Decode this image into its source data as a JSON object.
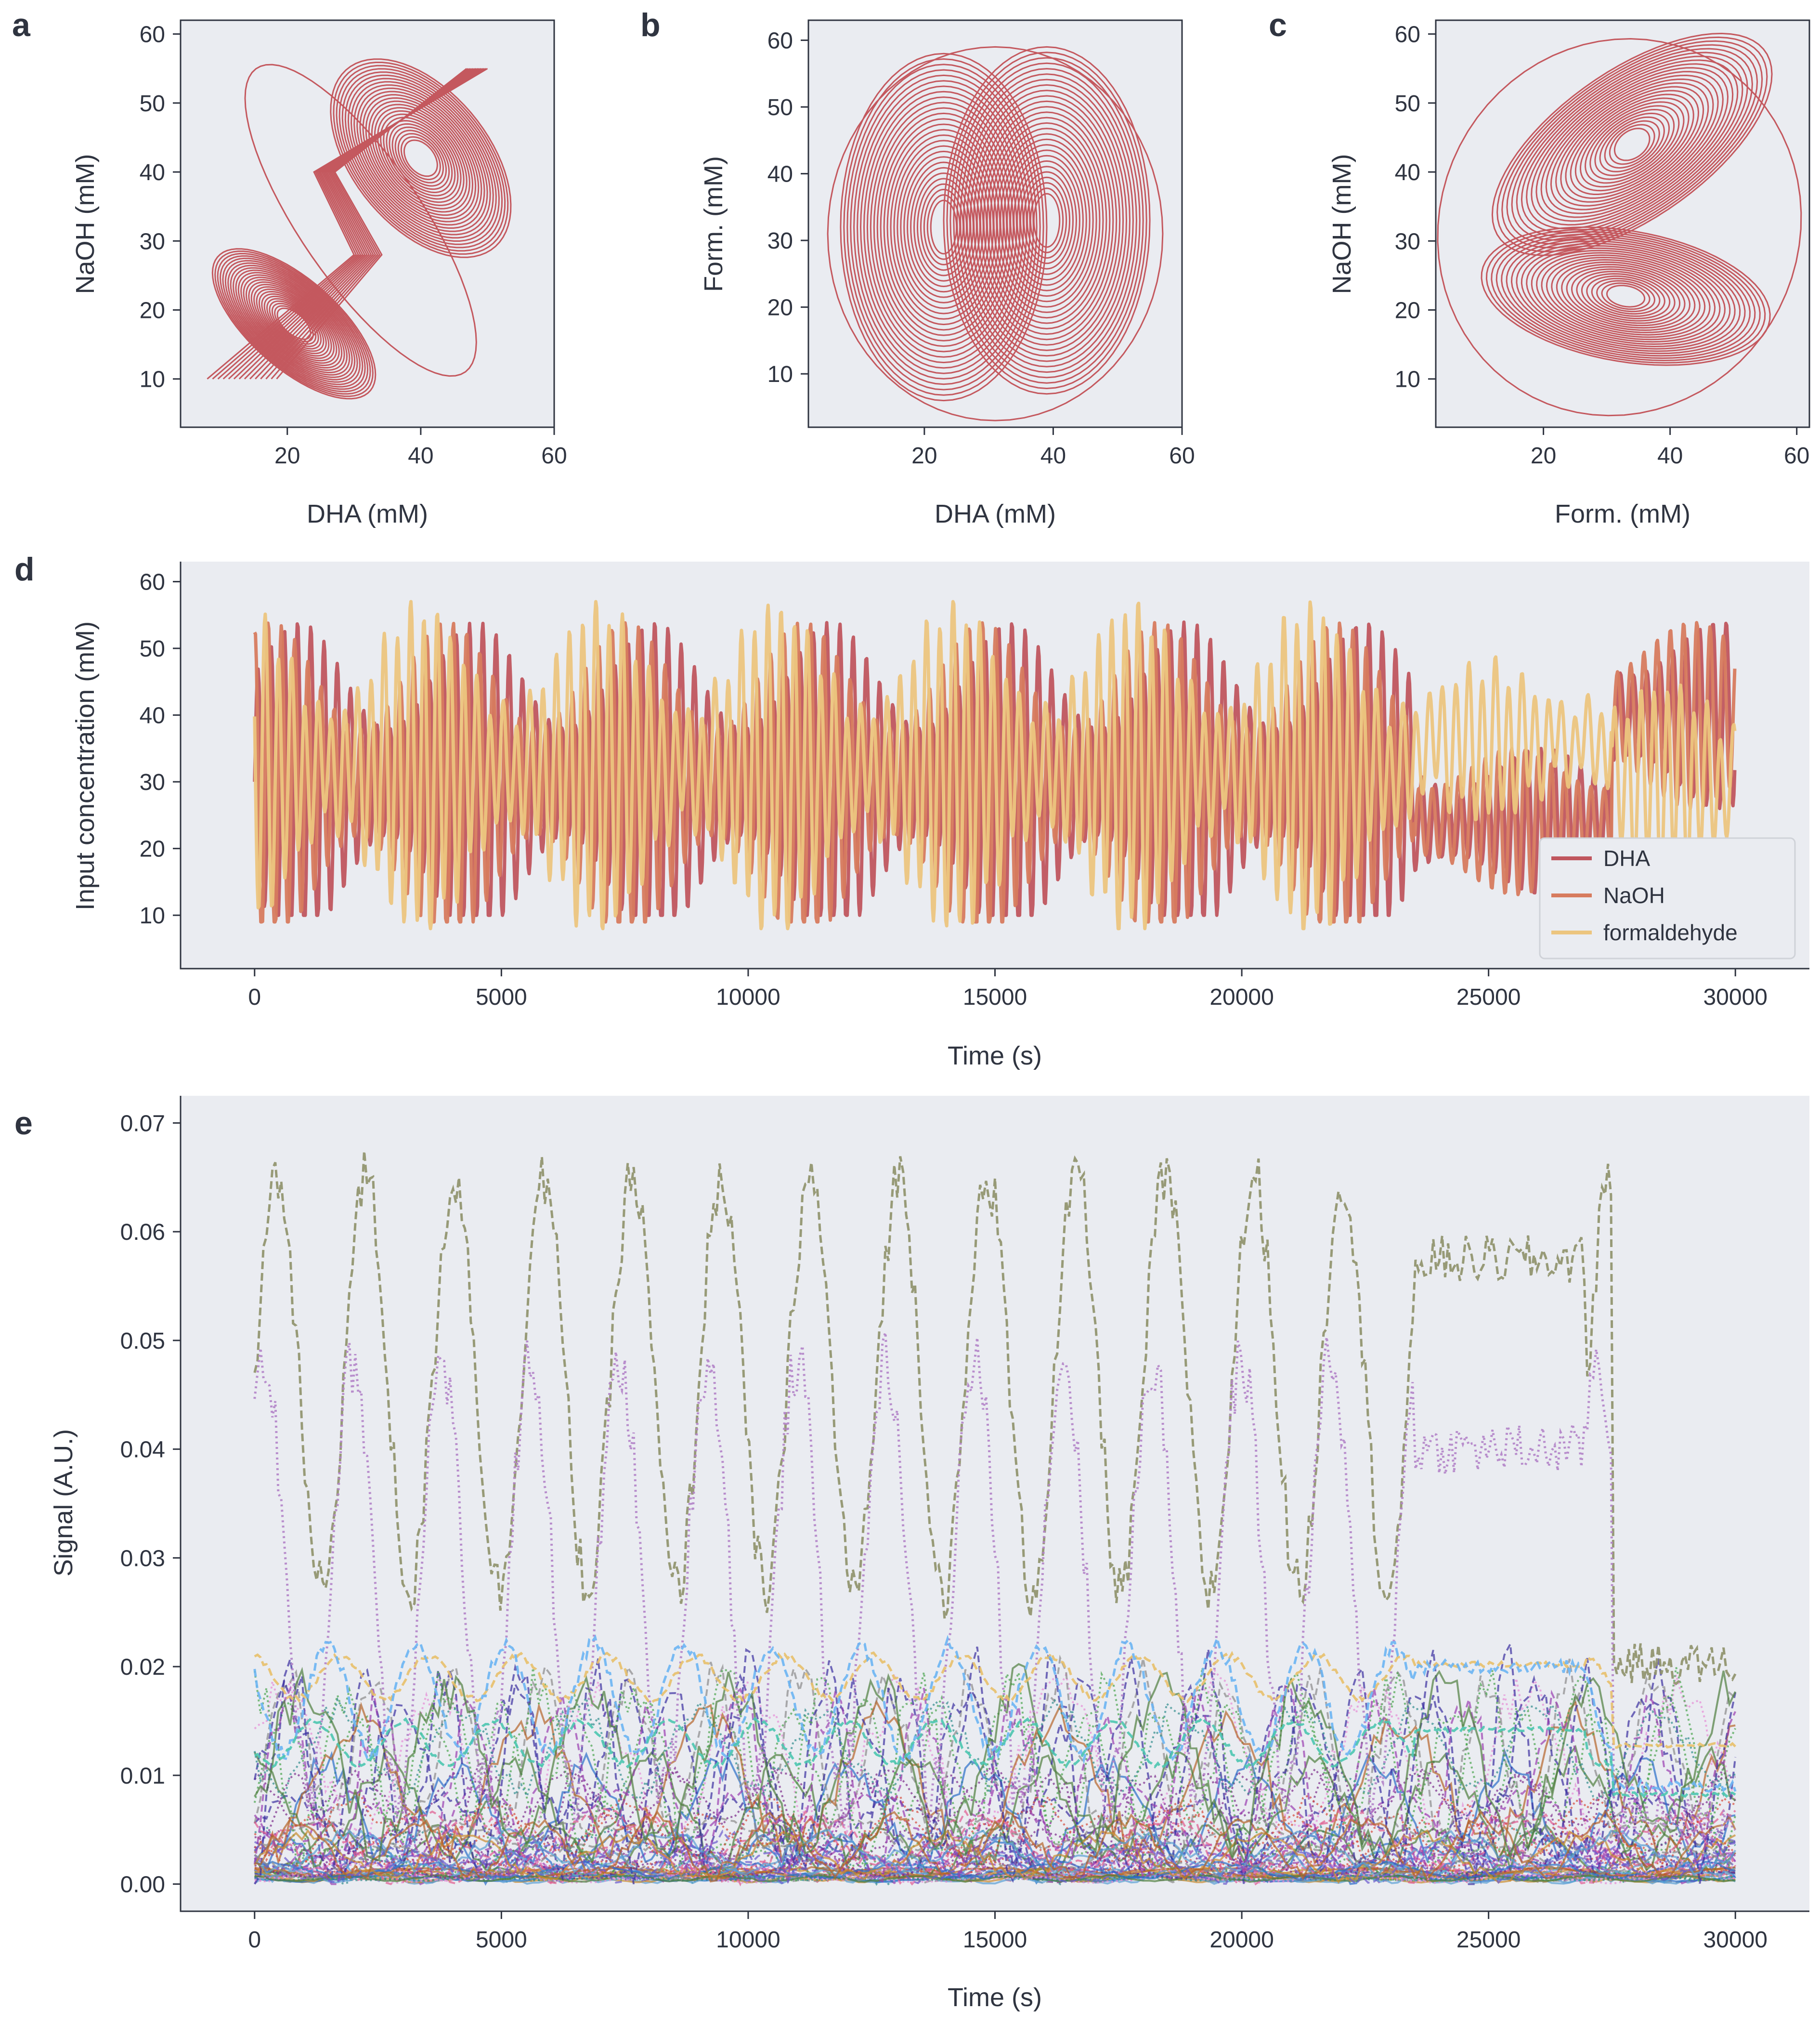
{
  "figure": {
    "background": "#ffffff",
    "axes_background": "#eaecf1",
    "spine_color": "#2f3440",
    "text_color": "#2f3440"
  },
  "chart_data": [
    {
      "id": "a",
      "panel_letter": "a",
      "type": "line",
      "variant": "phase-portrait",
      "xlabel": "DHA (mM)",
      "ylabel": "NaOH (mM)",
      "xlim": [
        4,
        60
      ],
      "ylim": [
        3,
        62
      ],
      "xticks": [
        20,
        40,
        60
      ],
      "yticks": [
        10,
        20,
        30,
        40,
        50,
        60
      ],
      "color": "#c4585e",
      "description_points": {
        "lobe_1_center": [
          21,
          18
        ],
        "lobe_2_center": [
          40,
          42
        ],
        "outer_extent_x": [
          5,
          58
        ],
        "outer_extent_y": [
          7,
          58
        ]
      }
    },
    {
      "id": "b",
      "panel_letter": "b",
      "type": "line",
      "variant": "phase-portrait",
      "xlabel": "DHA (mM)",
      "ylabel": "Form. (mM)",
      "xlim": [
        2,
        60
      ],
      "ylim": [
        2,
        63
      ],
      "xticks": [
        20,
        40,
        60
      ],
      "yticks": [
        10,
        20,
        30,
        40,
        50,
        60
      ],
      "color": "#c4585e",
      "description_points": {
        "lobe_1_center": [
          23,
          32
        ],
        "lobe_2_center": [
          39,
          33
        ],
        "outer_extent_x": [
          5,
          58
        ],
        "outer_extent_y": [
          4,
          59
        ]
      }
    },
    {
      "id": "c",
      "panel_letter": "c",
      "type": "line",
      "variant": "phase-portrait",
      "xlabel": "Form. (mM)",
      "ylabel": "NaOH (mM)",
      "xlim": [
        3,
        62
      ],
      "ylim": [
        3,
        62
      ],
      "xticks": [
        20,
        40,
        60
      ],
      "yticks": [
        10,
        20,
        30,
        40,
        50,
        60
      ],
      "color": "#c4585e",
      "description_points": {
        "lobe_1_center": [
          33,
          22
        ],
        "lobe_2_center": [
          34,
          44
        ],
        "outer_extent_x": [
          4,
          61
        ],
        "outer_extent_y": [
          6,
          59
        ]
      }
    },
    {
      "id": "d",
      "panel_letter": "d",
      "type": "line",
      "xlabel": "Time (s)",
      "ylabel": "Input concentration (mM)",
      "xlim": [
        -1500,
        31500
      ],
      "ylim": [
        2,
        63
      ],
      "xticks": [
        0,
        5000,
        10000,
        15000,
        20000,
        25000,
        30000
      ],
      "yticks": [
        10,
        20,
        30,
        40,
        50,
        60
      ],
      "legend_position": "bottom-right",
      "series": [
        {
          "name": "DHA",
          "color": "#c0565e",
          "baseline": 30,
          "amp_min": 10,
          "amp_max": 55
        },
        {
          "name": "NaOH",
          "color": "#d77b5e",
          "baseline": 30,
          "amp_min": 9,
          "amp_max": 56
        },
        {
          "name": "formaldehyde",
          "color": "#ecc57e",
          "baseline": 32,
          "amp_min": 8,
          "amp_max": 57
        }
      ],
      "regime_change_x": [
        23500,
        27500
      ]
    },
    {
      "id": "e",
      "panel_letter": "e",
      "type": "line",
      "xlabel": "Time (s)",
      "ylabel": "Signal (A.U.)",
      "xlim": [
        -1500,
        31500
      ],
      "ylim": [
        -0.0025,
        0.0725
      ],
      "xticks": [
        0,
        5000,
        10000,
        15000,
        20000,
        25000,
        30000
      ],
      "yticks": [
        0.0,
        0.01,
        0.02,
        0.03,
        0.04,
        0.05,
        0.06,
        0.07
      ],
      "ytick_labels": [
        "0.00",
        "0.01",
        "0.02",
        "0.03",
        "0.04",
        "0.05",
        "0.06",
        "0.07"
      ],
      "series_count": 60,
      "major_series": [
        {
          "color": "#8e9169",
          "style": "dashed",
          "low": 0.027,
          "high": 0.065
        },
        {
          "color": "#b383c8",
          "style": "dotted",
          "low": 0.008,
          "high": 0.048
        },
        {
          "color": "#e8c06a",
          "style": "dashed",
          "low": 0.017,
          "high": 0.021
        },
        {
          "color": "#6cb5f3",
          "style": "dashed",
          "low": 0.012,
          "high": 0.022
        },
        {
          "color": "#4dc7b0",
          "style": "dashed",
          "low": 0.011,
          "high": 0.015
        }
      ],
      "minor_palette": [
        "#3b2fa0",
        "#7b2a8a",
        "#2b6fc9",
        "#e05a8e",
        "#47a44b",
        "#c98b2f",
        "#8a8a8a",
        "#d64a3a",
        "#5a9fd4",
        "#9a3fb0",
        "#2e8b8b",
        "#b5652b",
        "#6a5acd",
        "#e58bd6",
        "#4f7f3f"
      ]
    }
  ]
}
